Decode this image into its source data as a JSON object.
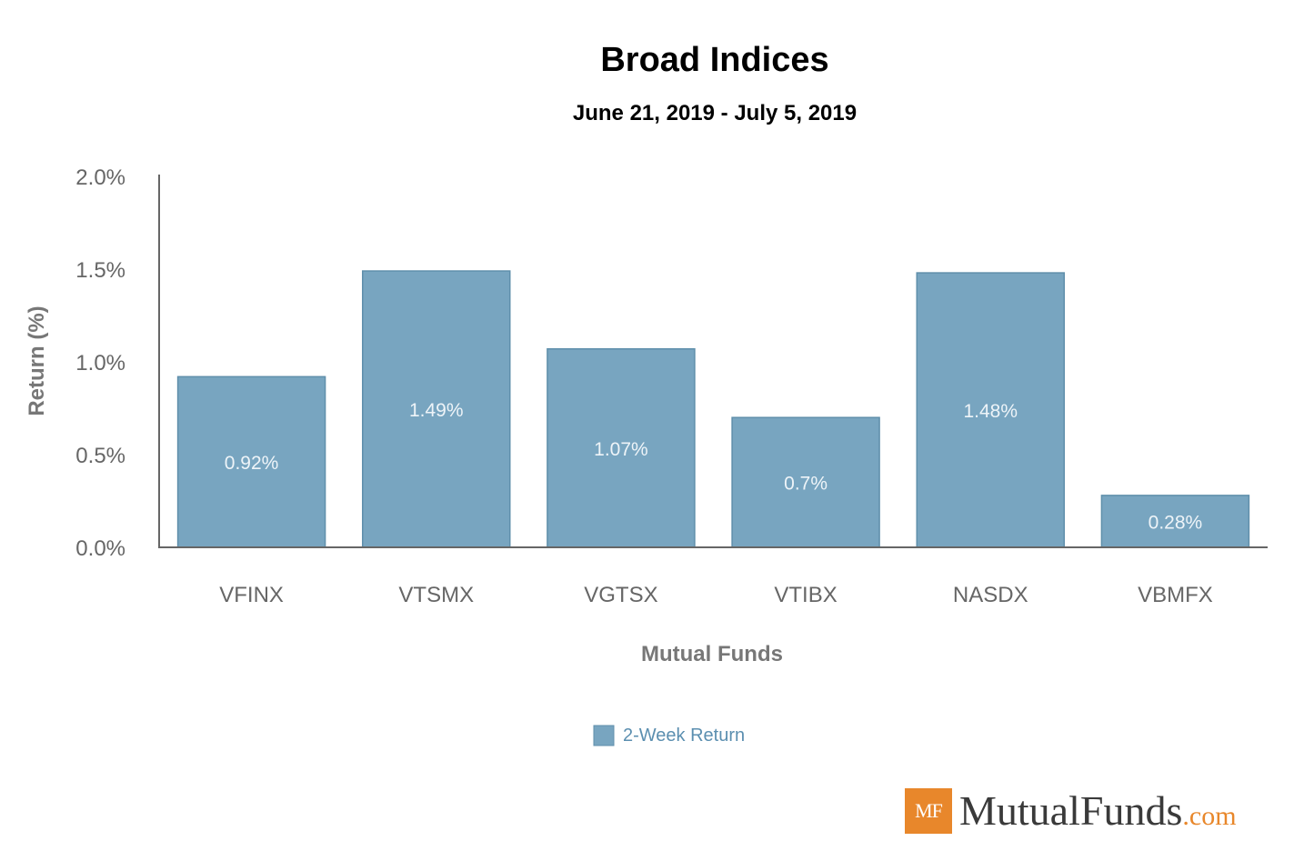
{
  "chart_data": {
    "type": "bar",
    "title": "Broad Indices",
    "subtitle": "June 21, 2019 - July 5, 2019",
    "xlabel": "Mutual Funds",
    "ylabel": "Return (%)",
    "ylim": [
      0,
      2.0
    ],
    "yticks": [
      "0.0%",
      "0.5%",
      "1.0%",
      "1.5%",
      "2.0%"
    ],
    "categories": [
      "VFINX",
      "VTSMX",
      "VGTSX",
      "VTIBX",
      "NASDX",
      "VBMFX"
    ],
    "series": [
      {
        "name": "2-Week Return",
        "values": [
          0.92,
          1.49,
          1.07,
          0.7,
          1.48,
          0.28
        ],
        "labels": [
          "0.92%",
          "1.49%",
          "1.07%",
          "0.7%",
          "1.48%",
          "0.28%"
        ]
      }
    ],
    "bar_color": "#78a5c0",
    "legend_position": "bottom-center",
    "grid": false
  },
  "logo": {
    "badge": "MF",
    "name": "MutualFunds",
    "tld": ".com",
    "accent_color": "#e8872b"
  }
}
